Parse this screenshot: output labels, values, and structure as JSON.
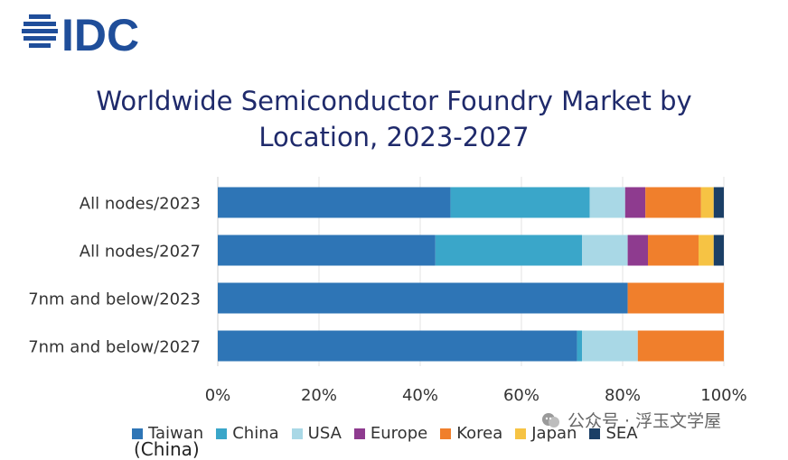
{
  "logo": {
    "text": "IDC",
    "icon": "idc-globe-logo",
    "color": "#1f4e9a"
  },
  "watermark": {
    "text": "公众号 · 浮玉文学屋",
    "icon": "wechat-icon"
  },
  "footer_fragment": "(China)",
  "chart_data": {
    "type": "bar",
    "orientation": "horizontal",
    "stacked": true,
    "title": "Worldwide Semiconductor Foundry Market by Location, 2023-2027",
    "title_lines": [
      "Worldwide Semiconductor Foundry Market by",
      "Location, 2023-2027"
    ],
    "categories": [
      "All nodes/2023",
      "All nodes/2027",
      "7nm and below/2023",
      "7nm and below/2027"
    ],
    "x_ticks": [
      "0%",
      "20%",
      "40%",
      "60%",
      "80%",
      "100%"
    ],
    "xlim": [
      0,
      100
    ],
    "grid": true,
    "legend_position": "bottom",
    "series": [
      {
        "name": "Taiwan",
        "color": "#2e75b6",
        "values": [
          46,
          43,
          81,
          71
        ]
      },
      {
        "name": "China",
        "color": "#3aa6c9",
        "values": [
          27.5,
          29,
          0,
          1
        ]
      },
      {
        "name": "USA",
        "color": "#a9d8e6",
        "values": [
          7,
          9,
          0,
          11
        ]
      },
      {
        "name": "Europe",
        "color": "#8e3b8f",
        "values": [
          4,
          4,
          0,
          0
        ]
      },
      {
        "name": "Korea",
        "color": "#f07f2c",
        "values": [
          11,
          10,
          19,
          17
        ]
      },
      {
        "name": "Japan",
        "color": "#f6c344",
        "values": [
          2.5,
          3,
          0,
          0
        ]
      },
      {
        "name": "SEA",
        "color": "#1b3f66",
        "values": [
          2,
          2,
          0,
          0
        ]
      }
    ]
  }
}
